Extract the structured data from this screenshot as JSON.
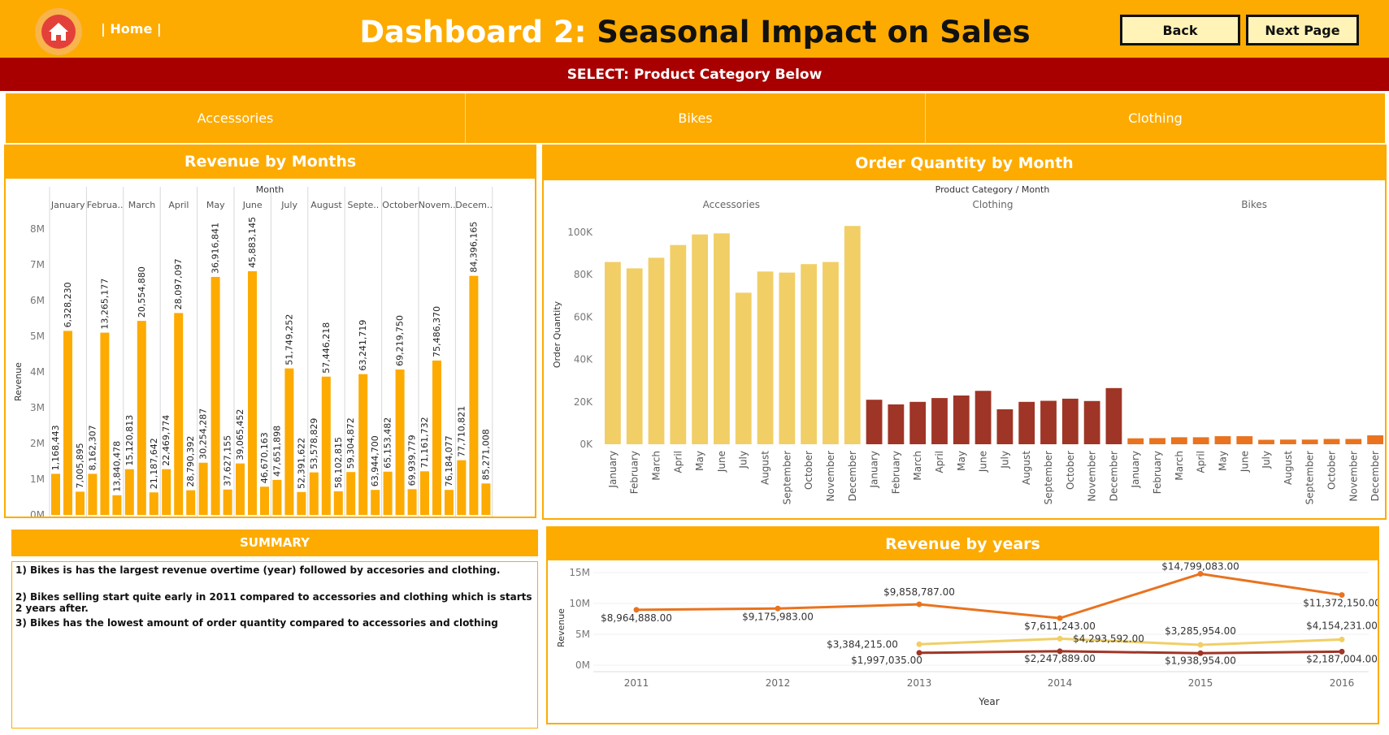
{
  "header": {
    "home_link": "| Home |",
    "title_part1": "Dashboard 2:",
    "title_part2": "Seasonal Impact on Sales",
    "back_label": "Back",
    "next_label": "Next Page"
  },
  "select_bar": "SELECT: Product Category Below",
  "categories": [
    "Accessories",
    "Bikes",
    "Clothing"
  ],
  "colors": {
    "brand": "#fdab00",
    "select_bar": "#a80000",
    "accessories": "#f1cf66",
    "clothing": "#9f3526",
    "bikes": "#e9731f"
  },
  "revenue_panel": {
    "title": "Revenue by Months"
  },
  "order_panel": {
    "title": "Order Quantity by Month"
  },
  "summary": {
    "title": "SUMMARY",
    "lines": [
      "1) Bikes is has the largest revenue overtime (year) followed by accesories and clothing.",
      "2) Bikes selling start quite early in 2011 compared to accessories and clothing which is starts 2 years after.",
      "3) Bikes has the lowest amount of order quantity compared to accessories and clothing"
    ]
  },
  "years_panel": {
    "title": "Revenue by years"
  },
  "chart_data": [
    {
      "type": "bar",
      "title": "Revenue by Months",
      "column_header": "Month",
      "categories": [
        "January",
        "Februa..",
        "March",
        "April",
        "May",
        "June",
        "July",
        "August",
        "Septe..",
        "October",
        "Novem..",
        "Decem.."
      ],
      "ylabel": "Revenue",
      "ylim": [
        0,
        8500000
      ],
      "y_ticks": [
        "0M",
        "1M",
        "2M",
        "3M",
        "4M",
        "5M",
        "6M",
        "7M",
        "8M"
      ],
      "bars_per_month": [
        [
          {
            "v": 1150000,
            "label": "1,168,443"
          },
          {
            "v": 5150000,
            "label": "6,328,230"
          },
          {
            "v": 650000,
            "label": "7,005,895"
          }
        ],
        [
          {
            "v": 1150000,
            "label": "8,162,307"
          },
          {
            "v": 5100000,
            "label": "13,265,177"
          },
          {
            "v": 550000,
            "label": "13,840,478"
          }
        ],
        [
          {
            "v": 1280000,
            "label": "15,120,813"
          },
          {
            "v": 5430000,
            "label": "20,554,880"
          },
          {
            "v": 630000,
            "label": "21,187,642"
          }
        ],
        [
          {
            "v": 1280000,
            "label": "22,469,774"
          },
          {
            "v": 5650000,
            "label": "28,097,097"
          },
          {
            "v": 690000,
            "label": "28,790,392"
          }
        ],
        [
          {
            "v": 1460000,
            "label": "30,254,287"
          },
          {
            "v": 6660000,
            "label": "36,916,841"
          },
          {
            "v": 710000,
            "label": "37,627,155"
          }
        ],
        [
          {
            "v": 1440000,
            "label": "39,065,452"
          },
          {
            "v": 6820000,
            "label": "45,883,145"
          },
          {
            "v": 790000,
            "label": "46,670,163"
          }
        ],
        [
          {
            "v": 980000,
            "label": "47,651,898"
          },
          {
            "v": 4100000,
            "label": "51,749,252"
          },
          {
            "v": 640000,
            "label": "52,391,622"
          }
        ],
        [
          {
            "v": 1190000,
            "label": "53,578,829"
          },
          {
            "v": 3870000,
            "label": "57,446,218"
          },
          {
            "v": 660000,
            "label": "58,102,815"
          }
        ],
        [
          {
            "v": 1200000,
            "label": "59,304,872"
          },
          {
            "v": 3940000,
            "label": "63,241,719"
          },
          {
            "v": 700000,
            "label": "63,944,700"
          }
        ],
        [
          {
            "v": 1210000,
            "label": "65,153,482"
          },
          {
            "v": 4070000,
            "label": "69,219,750"
          },
          {
            "v": 720000,
            "label": "69,939,779"
          }
        ],
        [
          {
            "v": 1220000,
            "label": "71,161,732"
          },
          {
            "v": 4320000,
            "label": "75,486,370"
          },
          {
            "v": 700000,
            "label": "76,184,077"
          }
        ],
        [
          {
            "v": 1530000,
            "label": "77,710,821"
          },
          {
            "v": 6690000,
            "label": "84,396,165"
          },
          {
            "v": 880000,
            "label": "85,271,008"
          }
        ]
      ]
    },
    {
      "type": "bar",
      "title": "Order Quantity by Month",
      "header": "Product Category / Month",
      "ylabel": "Order Quantity",
      "ylim": [
        0,
        105000
      ],
      "y_ticks": [
        "0K",
        "20K",
        "40K",
        "60K",
        "80K",
        "100K"
      ],
      "months": [
        "January",
        "February",
        "March",
        "April",
        "May",
        "June",
        "July",
        "August",
        "September",
        "October",
        "November",
        "December"
      ],
      "series": [
        {
          "name": "Accessories",
          "color": "#f1cf66",
          "values": [
            86000,
            83000,
            88000,
            94000,
            99000,
            99500,
            71500,
            81500,
            81000,
            85000,
            86000,
            103000
          ]
        },
        {
          "name": "Clothing",
          "color": "#9f3526",
          "values": [
            21000,
            18800,
            20000,
            21800,
            23000,
            25200,
            16500,
            20000,
            20500,
            21500,
            20400,
            26500
          ]
        },
        {
          "name": "Bikes",
          "color": "#e9731f",
          "values": [
            2800,
            2900,
            3300,
            3300,
            3800,
            3800,
            2100,
            2200,
            2200,
            2500,
            2500,
            4200
          ]
        }
      ]
    },
    {
      "type": "line",
      "title": "Revenue by years",
      "xlabel": "Year",
      "ylabel": "Revenue",
      "x": [
        "2011",
        "2012",
        "2013",
        "2014",
        "2015",
        "2016"
      ],
      "ylim": [
        0,
        15000000
      ],
      "y_ticks": [
        "0M",
        "5M",
        "10M",
        "15M"
      ],
      "series": [
        {
          "name": "Bikes",
          "color": "#e9731f",
          "values": [
            8964888,
            9175983,
            9858787,
            7611243,
            14799083,
            11372150
          ],
          "labels": [
            "$8,964,888.00",
            "$9,175,983.00",
            "$9,858,787.00",
            "$7,611,243.00",
            "$14,799,083.00",
            "$11,372,150.00"
          ]
        },
        {
          "name": "Accessories",
          "color": "#f1cf66",
          "values": [
            null,
            null,
            3384215,
            4293592,
            3285954,
            4154231
          ],
          "labels": [
            "",
            "",
            "$3,384,215.00",
            "$4,293,592.00",
            "$3,285,954.00",
            "$4,154,231.00"
          ]
        },
        {
          "name": "Clothing",
          "color": "#9f3526",
          "values": [
            null,
            null,
            1997035,
            2247889,
            1938954,
            2187004
          ],
          "labels": [
            "",
            "",
            "$1,997,035.00",
            "$2,247,889.00",
            "$1,938,954.00",
            "$2,187,004.00"
          ]
        }
      ]
    }
  ]
}
